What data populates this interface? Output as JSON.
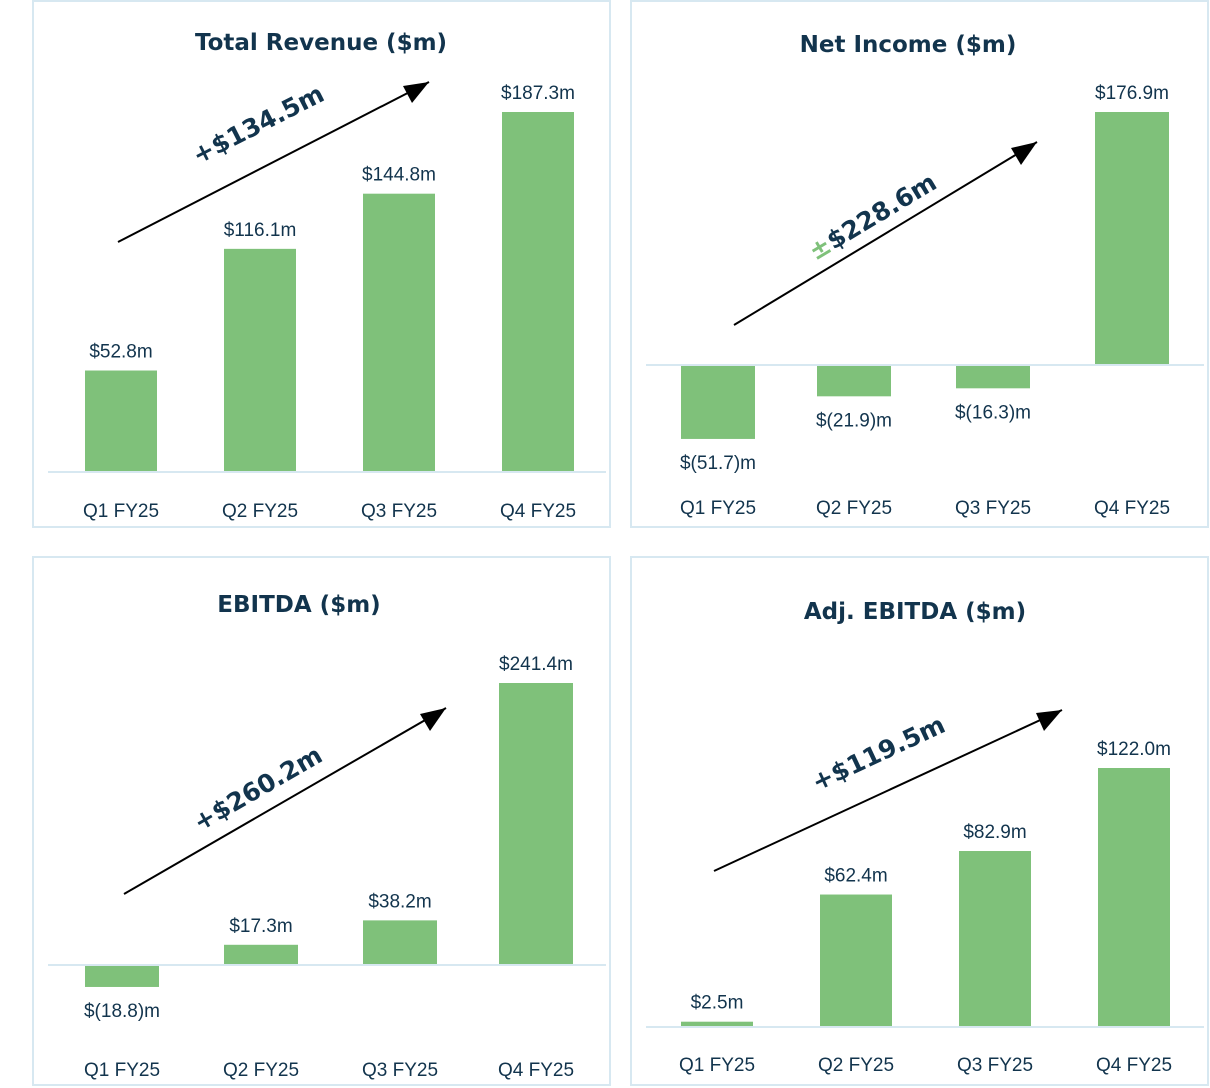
{
  "colors": {
    "bar": "#7fc17a",
    "text": "#12344d",
    "baseline": "#d7e8f1",
    "panel_border": "#d7e8f1",
    "plus_minus": "#7fc17a"
  },
  "chart_data": [
    {
      "type": "bar",
      "title": "Total Revenue ($m)",
      "categories": [
        "Q1 FY25",
        "Q2 FY25",
        "Q3 FY25",
        "Q4 FY25"
      ],
      "values": [
        52.8,
        116.1,
        144.8,
        187.3
      ],
      "value_labels": [
        "$52.8m",
        "$116.1m",
        "$144.8m",
        "$187.3m"
      ],
      "ylim": [
        0,
        200
      ],
      "delta_sign": "+",
      "delta_value": "$134.5m",
      "xlabel": "",
      "ylabel": "",
      "grid": false
    },
    {
      "type": "bar",
      "title": "Net Income ($m)",
      "categories": [
        "Q1 FY25",
        "Q2 FY25",
        "Q3 FY25",
        "Q4 FY25"
      ],
      "values": [
        -51.7,
        -21.9,
        -16.3,
        176.9
      ],
      "value_labels": [
        "$(51.7)m",
        "$(21.9)m",
        "$(16.3)m",
        "$176.9m"
      ],
      "ylim": [
        -85,
        210
      ],
      "delta_sign": "±",
      "delta_value": "$228.6m",
      "xlabel": "",
      "ylabel": "",
      "grid": false
    },
    {
      "type": "bar",
      "title": "EBITDA ($m)",
      "categories": [
        "Q1 FY25",
        "Q2 FY25",
        "Q3 FY25",
        "Q4 FY25"
      ],
      "values": [
        -18.8,
        17.3,
        38.2,
        241.4
      ],
      "value_labels": [
        "$(18.8)m",
        "$17.3m",
        "$38.2m",
        "$241.4m"
      ],
      "ylim": [
        -55,
        270
      ],
      "delta_sign": "+",
      "delta_value": "$260.2m",
      "xlabel": "",
      "ylabel": "",
      "grid": false
    },
    {
      "type": "bar",
      "title": "Adj. EBITDA ($m)",
      "categories": [
        "Q1 FY25",
        "Q2 FY25",
        "Q3 FY25",
        "Q4 FY25"
      ],
      "values": [
        2.5,
        62.4,
        82.9,
        122.0
      ],
      "value_labels": [
        "$2.5m",
        "$62.4m",
        "$82.9m",
        "$122.0m"
      ],
      "ylim": [
        0,
        150
      ],
      "delta_sign": "+",
      "delta_value": "$119.5m",
      "xlabel": "",
      "ylabel": "",
      "grid": false
    }
  ]
}
